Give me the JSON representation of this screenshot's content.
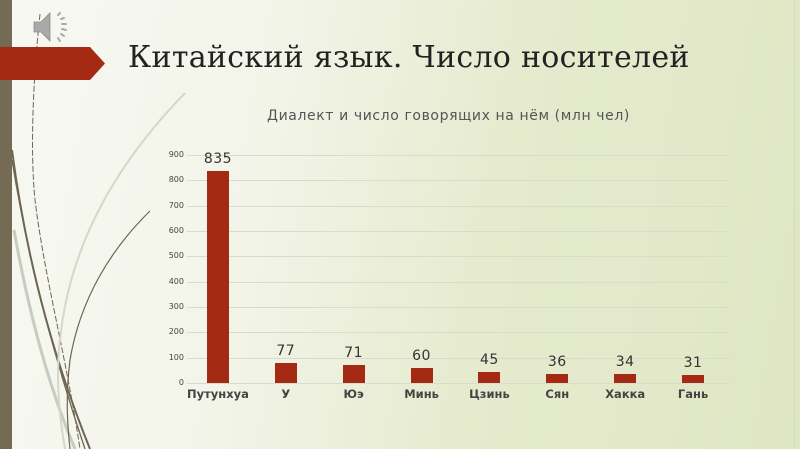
{
  "slide": {
    "title": "Китайский язык. Число носителей",
    "icons": {
      "audio": "speaker-icon",
      "bullet": "arrow-banner-icon"
    }
  },
  "colors": {
    "bar": "#a52a14",
    "accent_banner": "#a52a14",
    "side_bar": "#756a54"
  },
  "chart_data": {
    "type": "bar",
    "title": "Диалект и число говорящих на нём (млн чел)",
    "xlabel": "",
    "ylabel": "",
    "categories": [
      "Путунхуа",
      "У",
      "Юэ",
      "Минь",
      "Цзинь",
      "Сян",
      "Хакка",
      "Гань"
    ],
    "values": [
      835,
      77,
      71,
      60,
      45,
      36,
      34,
      31
    ],
    "ylim": [
      0,
      900
    ],
    "yticks": [
      0,
      100,
      200,
      300,
      400,
      500,
      600,
      700,
      800,
      900
    ],
    "grid": true,
    "legend": null,
    "data_labels": true
  }
}
